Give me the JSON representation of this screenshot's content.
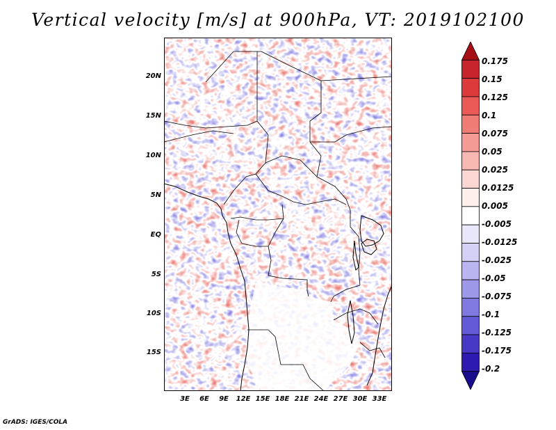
{
  "title": "Vertical velocity [m/s] at 900hPa, VT: 2019102100",
  "credit": "GrADS: IGES/COLA",
  "lat_labels": [
    "20N",
    "15N",
    "10N",
    "5N",
    "EQ",
    "5S",
    "10S",
    "15S"
  ],
  "lon_labels": [
    "3E",
    "6E",
    "9E",
    "12E",
    "15E",
    "18E",
    "21E",
    "24E",
    "27E",
    "30E",
    "33E"
  ],
  "domain": {
    "lon_range": [
      0.5,
      35.5
    ],
    "lat_range": [
      -20,
      24.5
    ]
  },
  "colorbar": {
    "labels": [
      "0.175",
      "0.15",
      "0.125",
      "0.1",
      "0.075",
      "0.05",
      "0.025",
      "0.0125",
      "0.005",
      "-0.005",
      "-0.0125",
      "-0.025",
      "-0.05",
      "-0.075",
      "-0.1",
      "-0.125",
      "-0.175",
      "-0.2"
    ],
    "colors": [
      "#a50f15",
      "#c8242c",
      "#dd3b3b",
      "#eb5a56",
      "#f07c76",
      "#f59a94",
      "#f9b9b3",
      "#fcd6d2",
      "#feeeec",
      "#ffffff",
      "#e9e8fb",
      "#d3d1f6",
      "#b9b5f0",
      "#9d98e8",
      "#807ae0",
      "#625ad6",
      "#4739c6",
      "#2d1ab0",
      "#1a0d8c"
    ]
  }
}
